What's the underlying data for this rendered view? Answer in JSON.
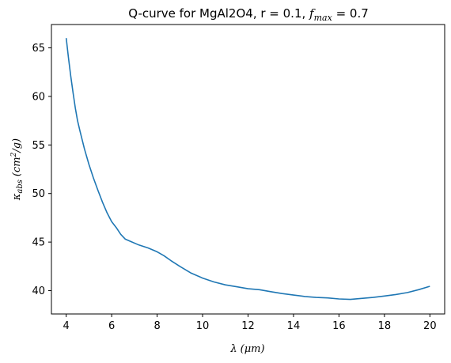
{
  "chart_data": {
    "type": "line",
    "title_prefix": "Q-curve for MgAl2O4, r = 0.1, ",
    "title_fmax_symbol": "f",
    "title_fmax_sub": "max",
    "title_suffix": " = 0.7",
    "xlabel_symbol": "λ",
    "xlabel_unit": "(μm)",
    "ylabel_symbol": "κ",
    "ylabel_sub": "abs",
    "ylabel_unit_prefix": "(cm",
    "ylabel_unit_sup": "2",
    "ylabel_unit_suffix": "/g)",
    "xlim": [
      3.35,
      20.65
    ],
    "ylim": [
      37.6,
      67.4
    ],
    "xticks": [
      4,
      6,
      8,
      10,
      12,
      14,
      16,
      18,
      20
    ],
    "yticks": [
      40,
      45,
      50,
      55,
      60,
      65
    ],
    "grid": false,
    "line_color": "#1f77b4",
    "series": [
      {
        "x": [
          4.0,
          4.1,
          4.2,
          4.3,
          4.4,
          4.5,
          4.6,
          4.8,
          5.0,
          5.2,
          5.4,
          5.6,
          5.8,
          6.0,
          6.2,
          6.4,
          6.6,
          6.8,
          7.2,
          7.6,
          8.0,
          8.3,
          8.6,
          9.0,
          9.5,
          10.0,
          10.5,
          11.0,
          11.5,
          12.0,
          12.5,
          13.0,
          13.5,
          14.0,
          14.5,
          15.0,
          15.5,
          16.0,
          16.5,
          17.0,
          17.5,
          18.0,
          18.5,
          19.0,
          19.5,
          20.0
        ],
        "y": [
          66.0,
          64.0,
          62.1,
          60.4,
          58.8,
          57.5,
          56.5,
          54.6,
          53.0,
          51.6,
          50.3,
          49.1,
          48.0,
          47.1,
          46.5,
          45.8,
          45.3,
          45.1,
          44.7,
          44.4,
          44.0,
          43.6,
          43.1,
          42.5,
          41.8,
          41.3,
          40.9,
          40.6,
          40.4,
          40.2,
          40.1,
          39.9,
          39.7,
          39.55,
          39.4,
          39.3,
          39.25,
          39.15,
          39.1,
          39.2,
          39.3,
          39.45,
          39.6,
          39.8,
          40.1,
          40.45
        ]
      }
    ]
  }
}
